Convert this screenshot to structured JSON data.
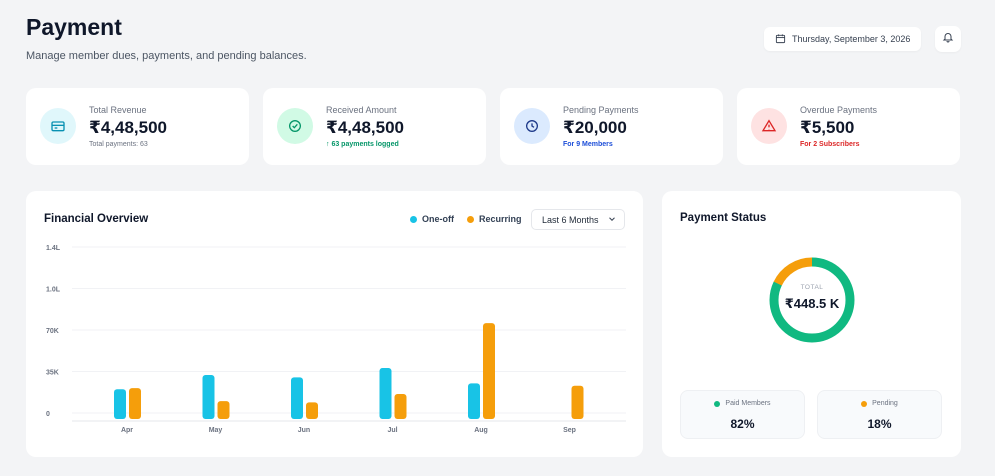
{
  "header": {
    "title": "Payment",
    "subtitle": "Manage member dues, payments, and pending balances.",
    "date": "Thursday, September 3, 2026"
  },
  "stats": [
    {
      "label": "Total Revenue",
      "value": "₹4,48,500",
      "sub": "Total payments: 63",
      "sub_color": "#6b7280",
      "icon": "card-icon",
      "icon_bg": "#e0f7fb",
      "icon_color": "#0891b2"
    },
    {
      "label": "Received Amount",
      "value": "₹4,48,500",
      "sub": "↑ 63 payments logged",
      "sub_color": "#059669",
      "icon": "check-circle-icon",
      "icon_bg": "#d1fae5",
      "icon_color": "#059669"
    },
    {
      "label": "Pending Payments",
      "value": "₹20,000",
      "sub": "For 9 Members",
      "sub_color": "#1d4ed8",
      "icon": "clock-icon",
      "icon_bg": "#dbeafe",
      "icon_color": "#1e3a8a"
    },
    {
      "label": "Overdue Payments",
      "value": "₹5,500",
      "sub": "For 2 Subscribers",
      "sub_color": "#dc2626",
      "icon": "alert-triangle-icon",
      "icon_bg": "#fee2e2",
      "icon_color": "#dc2626"
    }
  ],
  "financial_overview": {
    "title": "Financial Overview",
    "legend_oneoff": "One-off",
    "legend_recurring": "Recurring",
    "period": "Last 6 Months"
  },
  "colors": {
    "oneoff": "#18c3e6",
    "recurring": "#f59e0b",
    "paid": "#10b981",
    "pending": "#f59e0b"
  },
  "chart_data": {
    "type": "bar",
    "categories": [
      "Apr",
      "May",
      "Jun",
      "Jul",
      "Aug",
      "Sep"
    ],
    "y_ticks": [
      "1.4L",
      "1.0L",
      "70K",
      "35K",
      "0"
    ],
    "series": [
      {
        "name": "One-off",
        "values": [
          20000,
          32000,
          30000,
          38000,
          25000,
          0
        ]
      },
      {
        "name": "Recurring",
        "values": [
          21000,
          10000,
          9000,
          16000,
          75000,
          23000
        ]
      }
    ],
    "ylim": [
      0,
      140000
    ]
  },
  "payment_status": {
    "title": "Payment Status",
    "total_label": "TOTAL",
    "total_value": "₹448.5 K",
    "paid_label": "Paid Members",
    "paid_value": "82%",
    "paid_fraction": 0.82,
    "pending_label": "Pending",
    "pending_value": "18%",
    "pending_fraction": 0.18
  }
}
